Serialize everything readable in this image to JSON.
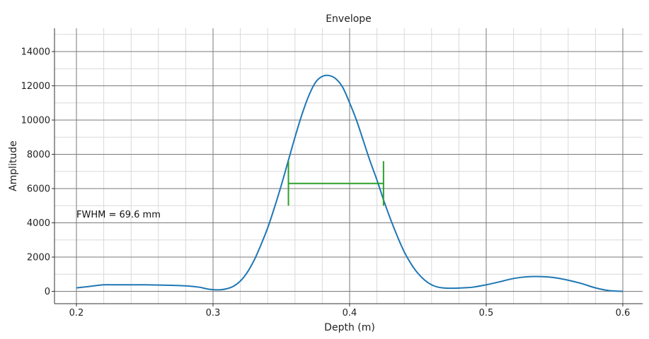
{
  "chart_data": {
    "type": "line",
    "title": "Envelope",
    "xlabel": "Depth (m)",
    "ylabel": "Amplitude",
    "xlim": [
      0.2,
      0.6
    ],
    "ylim": [
      0,
      15000
    ],
    "xticks": [
      0.2,
      0.3,
      0.4,
      0.5,
      0.6
    ],
    "xtick_labels": [
      "0.2",
      "0.3",
      "0.4",
      "0.5",
      "0.6"
    ],
    "yticks": [
      0,
      2000,
      4000,
      6000,
      8000,
      10000,
      12000,
      14000
    ],
    "ytick_labels": [
      "0",
      "2000",
      "4000",
      "6000",
      "8000",
      "10000",
      "12000",
      "14000"
    ],
    "grid": true,
    "series": [
      {
        "color": "#1f77b4",
        "x": [
          0.2,
          0.21,
          0.22,
          0.23,
          0.25,
          0.27,
          0.28,
          0.29,
          0.295,
          0.3,
          0.305,
          0.31,
          0.315,
          0.32,
          0.325,
          0.33,
          0.335,
          0.34,
          0.345,
          0.35,
          0.355,
          0.36,
          0.365,
          0.37,
          0.375,
          0.38,
          0.385,
          0.39,
          0.395,
          0.4,
          0.405,
          0.41,
          0.415,
          0.42,
          0.425,
          0.43,
          0.435,
          0.44,
          0.445,
          0.45,
          0.455,
          0.46,
          0.465,
          0.47,
          0.475,
          0.48,
          0.485,
          0.49,
          0.5,
          0.51,
          0.52,
          0.53,
          0.54,
          0.55,
          0.56,
          0.57,
          0.58,
          0.59,
          0.6
        ],
        "y": [
          200,
          290,
          380,
          380,
          380,
          350,
          320,
          240,
          150,
          100,
          90,
          150,
          300,
          600,
          1100,
          1800,
          2700,
          3700,
          4900,
          6200,
          7600,
          9000,
          10300,
          11400,
          12200,
          12550,
          12600,
          12400,
          11900,
          11000,
          10000,
          8800,
          7600,
          6500,
          5300,
          4200,
          3200,
          2300,
          1600,
          1050,
          650,
          380,
          240,
          190,
          180,
          190,
          210,
          240,
          380,
          560,
          750,
          850,
          860,
          800,
          650,
          450,
          200,
          40,
          0
        ]
      }
    ],
    "fwhm_marker": {
      "color": "#2ca02c",
      "x_left": 0.3552,
      "x_right": 0.4248,
      "y_level": 6300,
      "cap_top": 7600,
      "cap_bottom": 5000
    },
    "annotation": {
      "text": "FWHM = 69.6 mm",
      "x": 0.2,
      "y": 4500
    }
  }
}
